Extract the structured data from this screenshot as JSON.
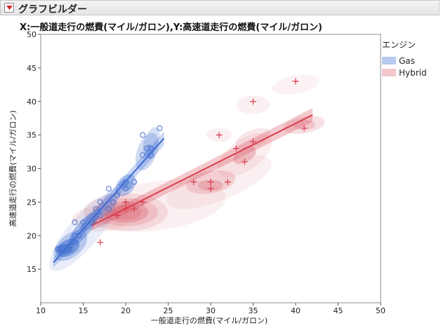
{
  "header": {
    "title": "グラフビルダー"
  },
  "chart_data": {
    "type": "scatter",
    "title": "X:一般道走行の燃費(マイル/ガロン),Y:高速道走行の燃費(マイル/ガロン)",
    "xlabel": "一般道走行の燃費(マイル/ガロン)",
    "ylabel": "高速道走行の燃費(マイル/ガロン)",
    "xlim": [
      10,
      50
    ],
    "ylim": [
      10,
      50
    ],
    "xticks": [
      10,
      15,
      20,
      25,
      30,
      35,
      40,
      45,
      50
    ],
    "yticks": [
      15,
      20,
      25,
      30,
      35,
      40,
      45,
      50
    ],
    "legend": {
      "title": "エンジン",
      "placement": "right",
      "items": [
        {
          "name": "Gas",
          "color": "#b7c9ef"
        },
        {
          "name": "Hybrid",
          "color": "#f2c7cc"
        }
      ]
    },
    "series": [
      {
        "name": "Gas",
        "marker": "circle",
        "color": "#4a72cc",
        "points": [
          [
            12,
            18
          ],
          [
            12.5,
            18
          ],
          [
            13,
            18
          ],
          [
            13.5,
            18.5
          ],
          [
            14,
            19
          ],
          [
            14,
            20
          ],
          [
            14,
            22
          ],
          [
            14.5,
            20
          ],
          [
            15,
            21
          ],
          [
            15,
            22
          ],
          [
            16,
            22
          ],
          [
            16.5,
            24
          ],
          [
            17,
            23
          ],
          [
            17,
            25
          ],
          [
            18,
            24
          ],
          [
            18,
            27
          ],
          [
            18.5,
            25
          ],
          [
            19,
            26
          ],
          [
            20,
            27
          ],
          [
            20,
            28
          ],
          [
            21,
            28
          ],
          [
            22,
            32
          ],
          [
            22,
            35
          ],
          [
            22.5,
            33
          ],
          [
            23,
            32
          ],
          [
            23,
            33
          ],
          [
            24,
            36
          ]
        ],
        "fit": {
          "x": [
            11.5,
            24.5
          ],
          "y": [
            16,
            34.5
          ]
        }
      },
      {
        "name": "Hybrid",
        "marker": "plus",
        "color": "#d83a4e",
        "points": [
          [
            17,
            19
          ],
          [
            19,
            23
          ],
          [
            20,
            24
          ],
          [
            20,
            25
          ],
          [
            21,
            24
          ],
          [
            22,
            25
          ],
          [
            28,
            28
          ],
          [
            30,
            27
          ],
          [
            30,
            28
          ],
          [
            31,
            35
          ],
          [
            32,
            28
          ],
          [
            33,
            33
          ],
          [
            34,
            31
          ],
          [
            35,
            34
          ],
          [
            35,
            40
          ],
          [
            40,
            43
          ],
          [
            41,
            36
          ]
        ],
        "fit": {
          "x": [
            16,
            42
          ],
          "y": [
            21.5,
            38
          ]
        }
      }
    ]
  }
}
